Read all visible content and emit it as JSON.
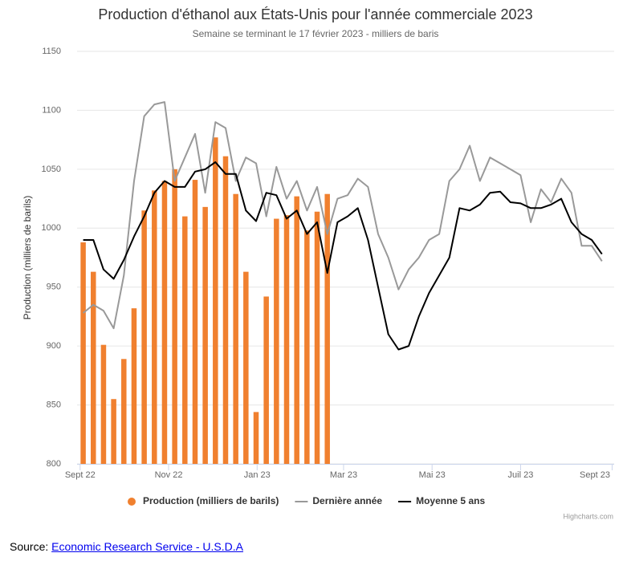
{
  "chart_data": {
    "type": "bar+line",
    "title": "Production d'éthanol aux États-Unis pour l'année commerciale 2023",
    "subtitle": "Semaine se terminant le 17 février 2023 - milliers de baris",
    "y_label": "Production (milliers de barils)",
    "x": [
      0,
      1,
      2,
      3,
      4,
      5,
      6,
      7,
      8,
      9,
      10,
      11,
      12,
      13,
      14,
      15,
      16,
      17,
      18,
      19,
      20,
      21,
      22,
      23,
      24,
      25,
      26,
      27,
      28,
      29,
      30,
      31,
      32,
      33,
      34,
      35,
      36,
      37,
      38,
      39,
      40,
      41,
      42,
      43,
      44,
      45,
      46,
      47,
      48,
      49,
      50,
      51
    ],
    "series": [
      {
        "name": "Production (milliers de barils)",
        "kind": "bar",
        "color": "#f0802f",
        "values": [
          988,
          963,
          901,
          855,
          889,
          932,
          1015,
          1032,
          1040,
          1050,
          1010,
          1041,
          1018,
          1077,
          1061,
          1029,
          963,
          844,
          942,
          1008,
          1011,
          1027,
          998,
          1014,
          1029,
          null,
          null,
          null,
          null,
          null,
          null,
          null,
          null,
          null,
          null,
          null,
          null,
          null,
          null,
          null,
          null,
          null,
          null,
          null,
          null,
          null,
          null,
          null,
          null,
          null,
          null,
          null
        ]
      },
      {
        "name": "Dernière année",
        "kind": "line",
        "color": "#999999",
        "values": [
          928,
          935,
          930,
          915,
          960,
          1040,
          1095,
          1105,
          1107,
          1040,
          1060,
          1080,
          1030,
          1090,
          1085,
          1040,
          1060,
          1055,
          1010,
          1052,
          1025,
          1040,
          1015,
          1035,
          995,
          1025,
          1028,
          1042,
          1035,
          995,
          975,
          948,
          965,
          975,
          990,
          995,
          1040,
          1050,
          1070,
          1040,
          1060,
          1055,
          1050,
          1045,
          1005,
          1033,
          1022,
          1042,
          1030,
          985,
          985,
          972
        ]
      },
      {
        "name": "Moyenne 5 ans",
        "kind": "line",
        "color": "#000000",
        "values": [
          990,
          990,
          965,
          957,
          973,
          993,
          1010,
          1030,
          1040,
          1035,
          1035,
          1048,
          1050,
          1056,
          1046,
          1046,
          1015,
          1006,
          1030,
          1028,
          1008,
          1015,
          995,
          1005,
          962,
          1005,
          1010,
          1017,
          990,
          950,
          910,
          897,
          900,
          925,
          945,
          960,
          975,
          1017,
          1015,
          1020,
          1030,
          1031,
          1022,
          1021,
          1017,
          1017,
          1020,
          1025,
          1005,
          995,
          990,
          978
        ]
      }
    ],
    "xlim": [
      -0.6,
      52.2
    ],
    "xticks": [
      {
        "value": -0.3,
        "label": "Sept 22"
      },
      {
        "value": 8.4,
        "label": "Nov 22"
      },
      {
        "value": 17.1,
        "label": "Jan 23"
      },
      {
        "value": 25.6,
        "label": "Mar 23"
      },
      {
        "value": 34.3,
        "label": "Mai 23"
      },
      {
        "value": 43,
        "label": "Juil 23"
      },
      {
        "value": 52,
        "label": "Sept 23"
      }
    ],
    "ylim": [
      800,
      1150
    ],
    "yticks": [
      800,
      850,
      900,
      950,
      1000,
      1050,
      1100,
      1150
    ],
    "grid": true,
    "credits": "Highcharts.com"
  },
  "source": {
    "label": "Source:",
    "link": "Economic Research Service - U.S.D.A"
  }
}
